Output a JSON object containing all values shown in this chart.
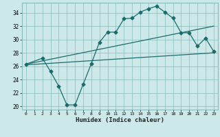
{
  "xlabel": "Humidex (Indice chaleur)",
  "background_color": "#cce8e8",
  "grid_color": "#88bbbb",
  "line_color": "#1a6b6b",
  "xlim": [
    -0.5,
    23.5
  ],
  "ylim": [
    19.5,
    35.5
  ],
  "xticks": [
    0,
    1,
    2,
    3,
    4,
    5,
    6,
    7,
    8,
    9,
    10,
    11,
    12,
    13,
    14,
    15,
    16,
    17,
    18,
    19,
    20,
    21,
    22,
    23
  ],
  "yticks": [
    20,
    22,
    24,
    26,
    28,
    30,
    32,
    34
  ],
  "curve1_x": [
    0,
    2,
    3,
    4,
    5,
    6,
    7,
    8,
    9,
    10,
    11,
    12,
    13,
    14,
    15,
    16,
    17,
    18,
    19,
    20,
    21,
    22,
    23
  ],
  "curve1_y": [
    26.3,
    27.2,
    25.2,
    23.0,
    20.2,
    20.2,
    23.3,
    26.4,
    29.6,
    31.1,
    31.1,
    33.1,
    33.2,
    34.1,
    34.6,
    35.0,
    34.1,
    33.2,
    31.0,
    31.0,
    29.0,
    30.2,
    28.2
  ],
  "line1_x": [
    0,
    23
  ],
  "line1_y": [
    26.3,
    32.0
  ],
  "line2_x": [
    0,
    23
  ],
  "line2_y": [
    26.2,
    28.0
  ]
}
